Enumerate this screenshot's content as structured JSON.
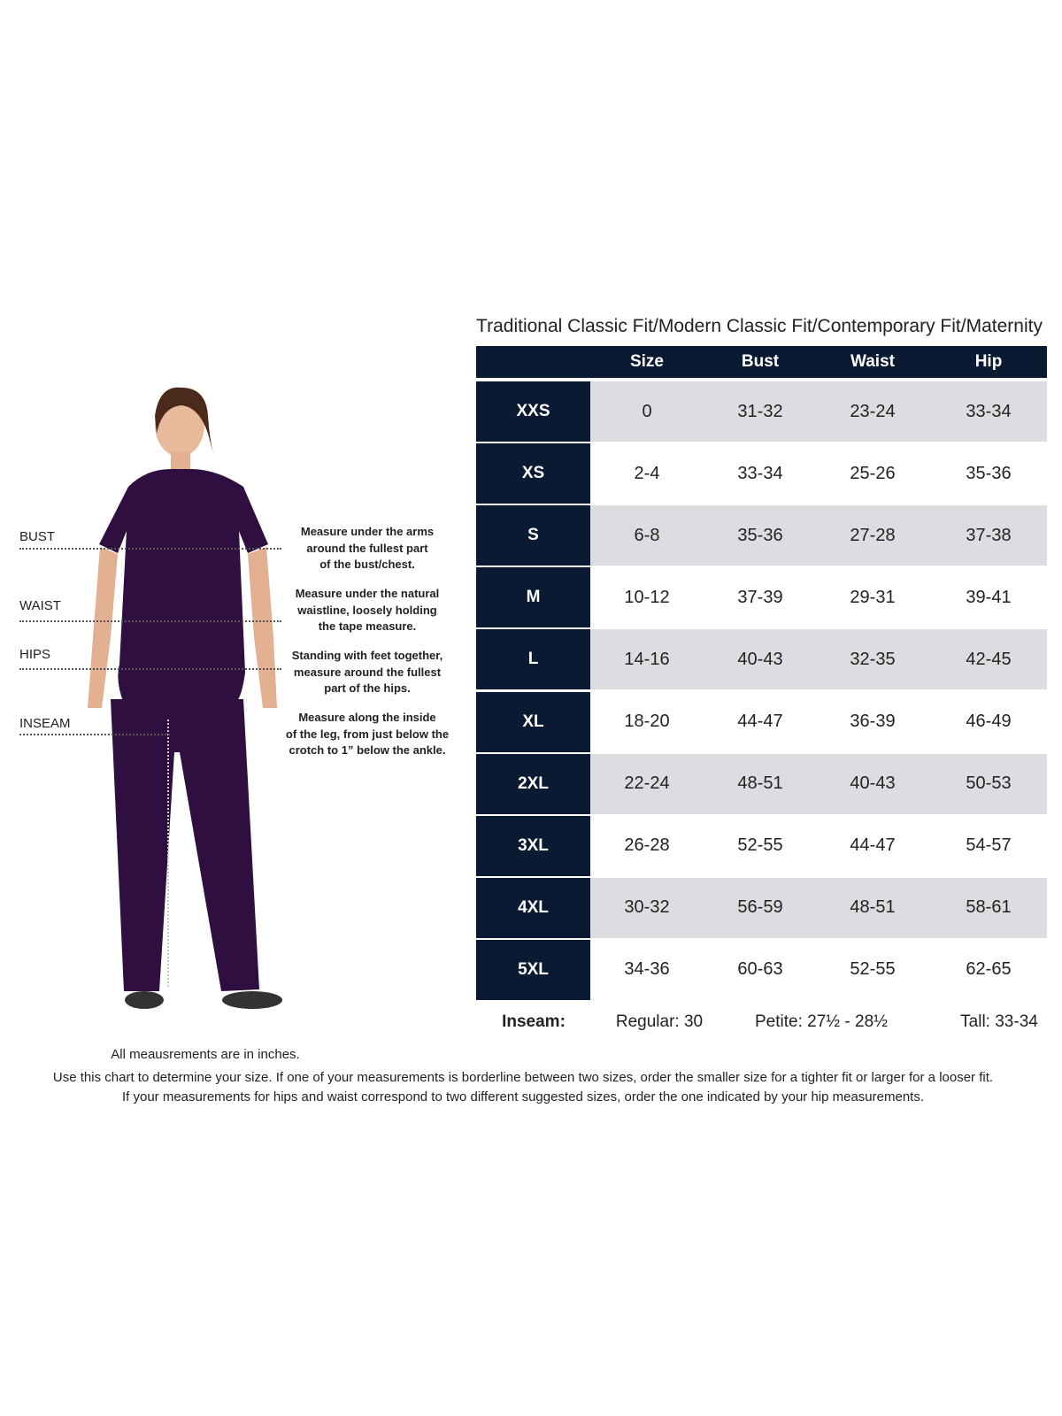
{
  "title": "Traditional Classic Fit/Modern Classic Fit/Contemporary Fit/Maternity",
  "colors": {
    "navy": "#0b1a33",
    "row_gray": "#dcdde1",
    "scrubs_purple": "#2e0f40"
  },
  "table": {
    "headers": [
      "Size",
      "Bust",
      "Waist",
      "Hip"
    ],
    "rows": [
      {
        "label": "XXS",
        "size": "0",
        "bust": "31-32",
        "waist": "23-24",
        "hip": "33-34"
      },
      {
        "label": "XS",
        "size": "2-4",
        "bust": "33-34",
        "waist": "25-26",
        "hip": "35-36"
      },
      {
        "label": "S",
        "size": "6-8",
        "bust": "35-36",
        "waist": "27-28",
        "hip": "37-38"
      },
      {
        "label": "M",
        "size": "10-12",
        "bust": "37-39",
        "waist": "29-31",
        "hip": "39-41"
      },
      {
        "label": "L",
        "size": "14-16",
        "bust": "40-43",
        "waist": "32-35",
        "hip": "42-45"
      },
      {
        "label": "XL",
        "size": "18-20",
        "bust": "44-47",
        "waist": "36-39",
        "hip": "46-49"
      },
      {
        "label": "2XL",
        "size": "22-24",
        "bust": "48-51",
        "waist": "40-43",
        "hip": "50-53"
      },
      {
        "label": "3XL",
        "size": "26-28",
        "bust": "52-55",
        "waist": "44-47",
        "hip": "54-57"
      },
      {
        "label": "4XL",
        "size": "30-32",
        "bust": "56-59",
        "waist": "48-51",
        "hip": "58-61"
      },
      {
        "label": "5XL",
        "size": "34-36",
        "bust": "60-63",
        "waist": "52-55",
        "hip": "62-65"
      }
    ]
  },
  "inseam": {
    "label": "Inseam:",
    "regular": "Regular: 30",
    "petite": "Petite: 27½ - 28½",
    "tall": "Tall: 33-34"
  },
  "measure_guide": [
    {
      "label": "BUST",
      "lines": [
        "Measure under the arms",
        "around the fullest part",
        "of the bust/chest."
      ]
    },
    {
      "label": "WAIST",
      "lines": [
        "Measure under the natural",
        "waistline, loosely holding",
        "the tape measure."
      ]
    },
    {
      "label": "HIPS",
      "lines": [
        "Standing with feet together,",
        "measure around the fullest",
        "part of the hips."
      ]
    },
    {
      "label": "INSEAM",
      "lines": [
        "Measure along the inside",
        "of the leg, from just below the",
        "crotch to 1” below the ankle."
      ]
    }
  ],
  "footer": {
    "units_note": "All meausrements are in inches.",
    "line1": "Use this chart to determine your size. If one of your measurements is borderline between two sizes, order the smaller size for a tighter fit or larger for a looser fit.",
    "line2": "If your measurements for hips and waist correspond to two different suggested sizes, order the one indicated by your hip measurements."
  }
}
